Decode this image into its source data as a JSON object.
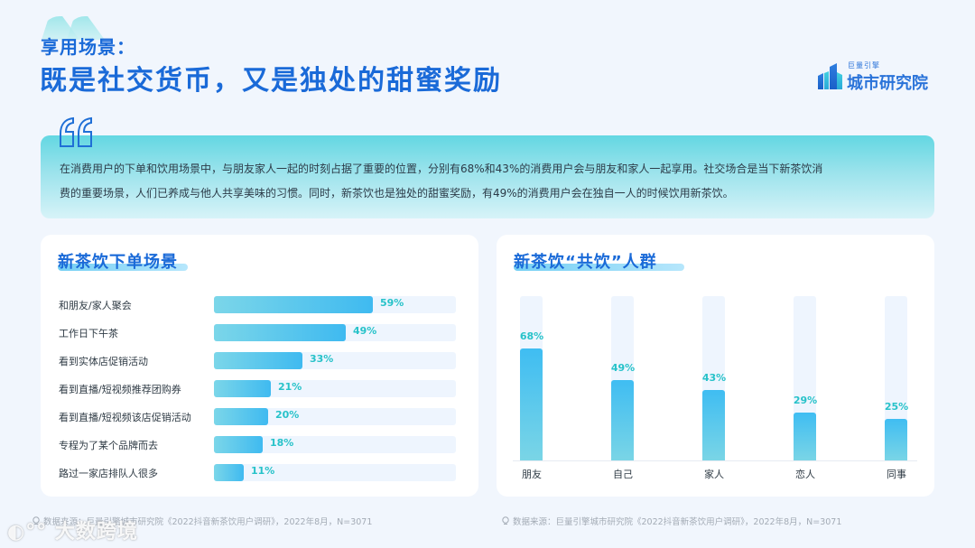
{
  "header": {
    "subtitle": "享用场景：",
    "title": "既是社交货币，又是独处的甜蜜奖励"
  },
  "logo": {
    "small_text": "巨量引擎",
    "big_text": "城市研究院",
    "icon": "building-icon"
  },
  "summary": {
    "icon": "quote-icon",
    "text_line1": "在消费用户的下单和饮用场景中，与朋友家人一起的时刻占据了重要的位置，分别有68%和43%的消费用户会与朋友和家人一起享用。社交场合是当下新茶饮消",
    "text_line2": "费的重要场景，人们已养成与他人共享美味的习惯。同时，新茶饮也是独处的甜蜜奖励，有49%的消费用户会在独自一人的时候饮用新茶饮。"
  },
  "left_card": {
    "title": "新茶饮下单场景",
    "rows": [
      {
        "label": "和朋友/家人聚会",
        "value": 59,
        "display": "59%"
      },
      {
        "label": "工作日下午茶",
        "value": 49,
        "display": "49%"
      },
      {
        "label": "看到实体店促销活动",
        "value": 33,
        "display": "33%"
      },
      {
        "label": "看到直播/短视频推荐团购券",
        "value": 21,
        "display": "21%"
      },
      {
        "label": "看到直播/短视频该店促销活动",
        "value": 20,
        "display": "20%"
      },
      {
        "label": "专程为了某个品牌而去",
        "value": 18,
        "display": "18%"
      },
      {
        "label": "路过一家店排队人很多",
        "value": 11,
        "display": "11%"
      }
    ]
  },
  "right_card": {
    "title": "新茶饮“共饮”人群",
    "cols": [
      {
        "label": "朋友",
        "value": 68,
        "display": "68%"
      },
      {
        "label": "自己",
        "value": 49,
        "display": "49%"
      },
      {
        "label": "家人",
        "value": 43,
        "display": "43%"
      },
      {
        "label": "恋人",
        "value": 29,
        "display": "29%"
      },
      {
        "label": "同事",
        "value": 25,
        "display": "25%"
      }
    ]
  },
  "footer": {
    "left": "数据来源：巨量引擎城市研究院《2022抖音新茶饮用户调研》，2022年8月，N=3071",
    "right": "数据来源：巨量引擎城市研究院《2022抖音新茶饮用户调研》，2022年8月，N=3071",
    "icon": "location-pin-icon"
  },
  "watermark": {
    "text": "大数跨境"
  },
  "colors": {
    "title_blue": "#1a6ad8",
    "value_teal": "#27c2c9",
    "bar_start": "#7bd6e9",
    "bar_end": "#3fbaf0",
    "track": "#eef5fe",
    "background": "#f1f6fd"
  },
  "chart_data": [
    {
      "type": "bar",
      "orientation": "horizontal",
      "title": "新茶饮下单场景",
      "categories": [
        "和朋友/家人聚会",
        "工作日下午茶",
        "看到实体店促销活动",
        "看到直播/短视频推荐团购券",
        "看到直播/短视频该店促销活动",
        "专程为了某个品牌而去",
        "路过一家店排队人很多"
      ],
      "values": [
        59,
        49,
        33,
        21,
        20,
        18,
        11
      ],
      "unit": "%",
      "xlim": [
        0,
        100
      ],
      "grid": false,
      "data_labels": true
    },
    {
      "type": "bar",
      "orientation": "vertical",
      "title": "新茶饮“共饮”人群",
      "categories": [
        "朋友",
        "自己",
        "家人",
        "恋人",
        "同事"
      ],
      "values": [
        68,
        49,
        43,
        29,
        25
      ],
      "unit": "%",
      "ylim": [
        0,
        100
      ],
      "grid": false,
      "data_labels": true
    }
  ]
}
